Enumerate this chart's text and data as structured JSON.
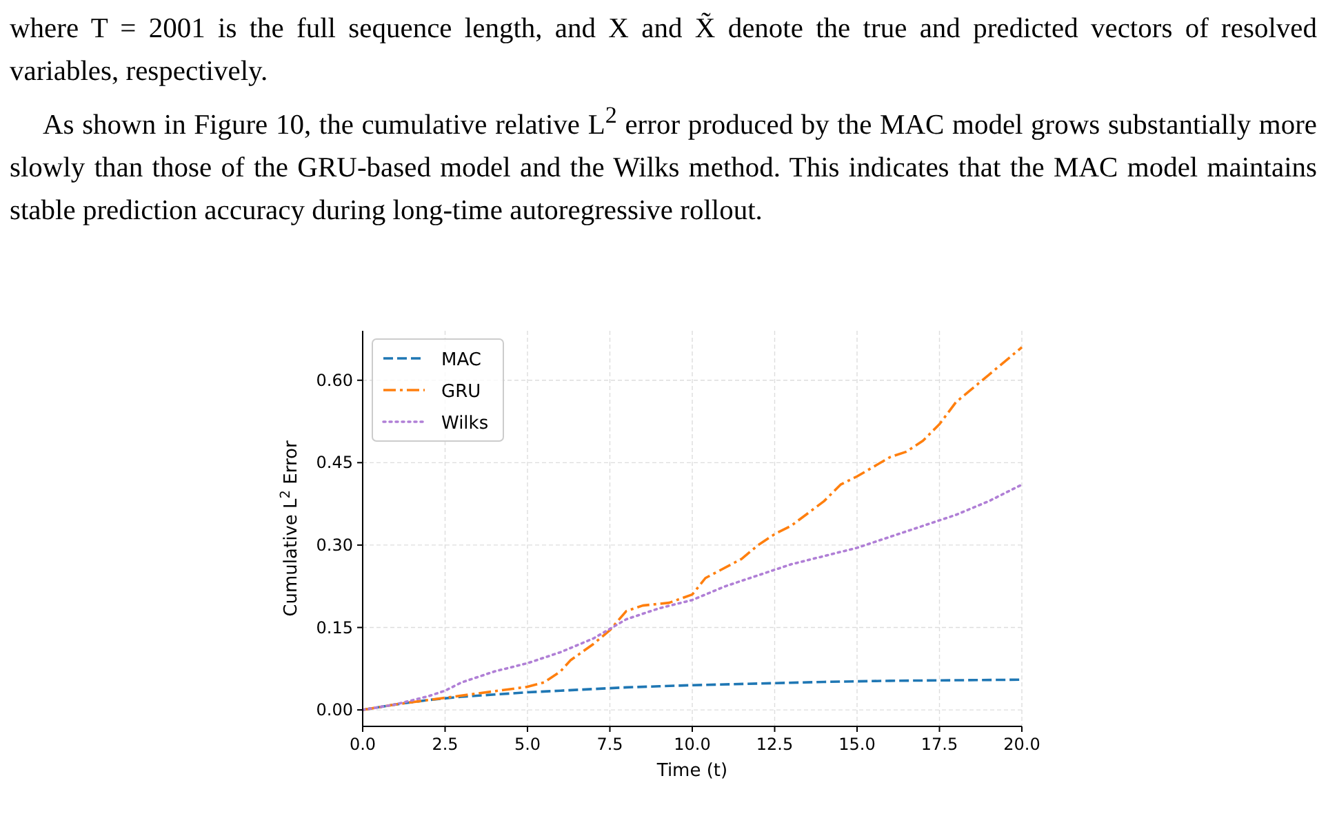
{
  "chart_data": {
    "type": "line",
    "xlabel": "Time (t)",
    "ylabel": "Cumulative L$^{2}$ Error",
    "xlim": [
      0,
      20
    ],
    "ylim": [
      -0.03,
      0.69
    ],
    "xticks": [
      {
        "value": 0,
        "label": "0.0"
      },
      {
        "value": 2.5,
        "label": "2.5"
      },
      {
        "value": 5,
        "label": "5.0"
      },
      {
        "value": 7.5,
        "label": "7.5"
      },
      {
        "value": 10,
        "label": "10.0"
      },
      {
        "value": 12.5,
        "label": "12.5"
      },
      {
        "value": 15,
        "label": "15.0"
      },
      {
        "value": 17.5,
        "label": "17.5"
      },
      {
        "value": 20,
        "label": "20.0"
      }
    ],
    "yticks": [
      {
        "value": 0,
        "label": "0.00"
      },
      {
        "value": 0.15,
        "label": "0.15"
      },
      {
        "value": 0.3,
        "label": "0.30"
      },
      {
        "value": 0.45,
        "label": "0.45"
      },
      {
        "value": 0.6,
        "label": "0.60"
      }
    ],
    "grid": true,
    "legend": "top left",
    "annotations": [
      "where T = 2001 is the full sequence length, and X and X̃ denote the true and predicted vectors of resolved variables, respectively.",
      "As shown in Figure 10, the cumulative relative L$^{2}$ error produced by the MAC model grows substantially more slowly than those of the GRU-based model and the Wilks method. This indicates that the MAC model maintains stable prediction accuracy during long-time autoregressive rollout."
    ],
    "series": [
      {
        "name": "MAC",
        "color": "#1f77b4",
        "line_style": "dashed",
        "x": [
          0,
          1,
          2,
          3,
          4,
          5,
          6,
          7,
          8,
          9,
          10,
          12,
          14,
          16,
          18,
          20
        ],
        "values": [
          0,
          0.01,
          0.018,
          0.024,
          0.028,
          0.032,
          0.035,
          0.038,
          0.041,
          0.043,
          0.045,
          0.048,
          0.051,
          0.053,
          0.054,
          0.055
        ]
      },
      {
        "name": "GRU",
        "color": "#ff7f0e",
        "line_style": "dashdot",
        "x": [
          0,
          1,
          2,
          2.5,
          3,
          4,
          5,
          5.5,
          6,
          6.3,
          7,
          7.5,
          8,
          8.5,
          9.3,
          10,
          10.4,
          11.5,
          12,
          12.5,
          13,
          14,
          14.5,
          15,
          16,
          16.5,
          17,
          17.5,
          18,
          19,
          20
        ],
        "values": [
          0,
          0.01,
          0.018,
          0.022,
          0.026,
          0.034,
          0.042,
          0.05,
          0.07,
          0.09,
          0.12,
          0.145,
          0.18,
          0.19,
          0.195,
          0.21,
          0.24,
          0.275,
          0.3,
          0.32,
          0.335,
          0.38,
          0.41,
          0.425,
          0.46,
          0.47,
          0.49,
          0.52,
          0.56,
          0.61,
          0.66
        ]
      },
      {
        "name": "Wilks",
        "color": "#b07fd6",
        "line_style": "dotted",
        "x": [
          0,
          1,
          2,
          2.5,
          3,
          4,
          5,
          6,
          7,
          8,
          9,
          10,
          11,
          12,
          13,
          14,
          15,
          16,
          17,
          18,
          19,
          20
        ],
        "values": [
          0,
          0.01,
          0.025,
          0.035,
          0.05,
          0.07,
          0.085,
          0.105,
          0.13,
          0.165,
          0.185,
          0.2,
          0.225,
          0.245,
          0.265,
          0.28,
          0.295,
          0.315,
          0.335,
          0.355,
          0.38,
          0.41
        ]
      }
    ]
  }
}
